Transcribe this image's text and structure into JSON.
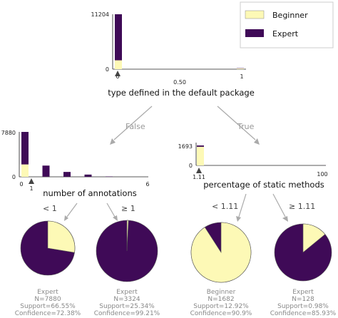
{
  "colors": {
    "beginner": "#fdf9b6",
    "expert": "#3f0a57",
    "axis": "#222222",
    "arrow": "#aaaaaa"
  },
  "legend": {
    "items": [
      "Beginner",
      "Expert"
    ]
  },
  "root": {
    "feature": "type defined in the default package",
    "y_max_label": "11204",
    "y_zero_label": "0",
    "x_ticks": [
      "0",
      "0.50",
      "1"
    ],
    "threshold_label": "",
    "chart_data": {
      "type": "bar",
      "stacked": true,
      "x": [
        0,
        1
      ],
      "series": [
        {
          "name": "Beginner",
          "values": [
            1810,
            140
          ]
        },
        {
          "name": "Expert",
          "values": [
            9394,
            60
          ]
        }
      ],
      "xlim": [
        0,
        1
      ],
      "ylim": [
        0,
        11204
      ]
    }
  },
  "edges": {
    "left": "False",
    "right": "True"
  },
  "node_left": {
    "feature": "number of annotations",
    "y_max_label": "7880",
    "y_zero_label": "0",
    "x_ticks": [
      "0",
      "6"
    ],
    "threshold_label": "1",
    "split_left": "< 1",
    "split_right": "≥ 1",
    "chart_data": {
      "type": "bar",
      "stacked": true,
      "x": [
        0,
        1,
        2,
        3,
        4
      ],
      "series": [
        {
          "name": "Beginner",
          "values": [
            2177,
            20,
            10,
            5,
            2
          ]
        },
        {
          "name": "Expert",
          "values": [
            5703,
            1950,
            850,
            390,
            60
          ]
        }
      ],
      "xlim": [
        0,
        6
      ],
      "ylim": [
        0,
        7880
      ]
    }
  },
  "node_right": {
    "feature": "percentage of static methods",
    "y_max_label": "1693",
    "y_zero_label": "0",
    "x_ticks": [
      "1.11",
      "100"
    ],
    "threshold_label": "1.11",
    "split_left": "< 1.11",
    "split_right": "≥ 1.11",
    "chart_data": {
      "type": "bar",
      "stacked": true,
      "x": [
        0,
        99
      ],
      "series": [
        {
          "name": "Beginner",
          "values": [
            1580,
            0
          ]
        },
        {
          "name": "Expert",
          "values": [
            113,
            2
          ]
        }
      ],
      "xlim": [
        0,
        100
      ],
      "ylim": [
        0,
        1693
      ]
    }
  },
  "leaves": [
    {
      "class": "Expert",
      "n": "N=7880",
      "support": "Support=66.55%",
      "confidence": "Confidence=72.38%",
      "expert_fraction": 0.7238
    },
    {
      "class": "Expert",
      "n": "N=3324",
      "support": "Support=25.34%",
      "confidence": "Confidence=99.21%",
      "expert_fraction": 0.9921
    },
    {
      "class": "Beginner",
      "n": "N=1682",
      "support": "Support=12.92%",
      "confidence": "Confidence=90.9%",
      "expert_fraction": 0.091
    },
    {
      "class": "Expert",
      "n": "N=128",
      "support": "Support=0.98%",
      "confidence": "Confidence=85.93%",
      "expert_fraction": 0.8593
    }
  ]
}
